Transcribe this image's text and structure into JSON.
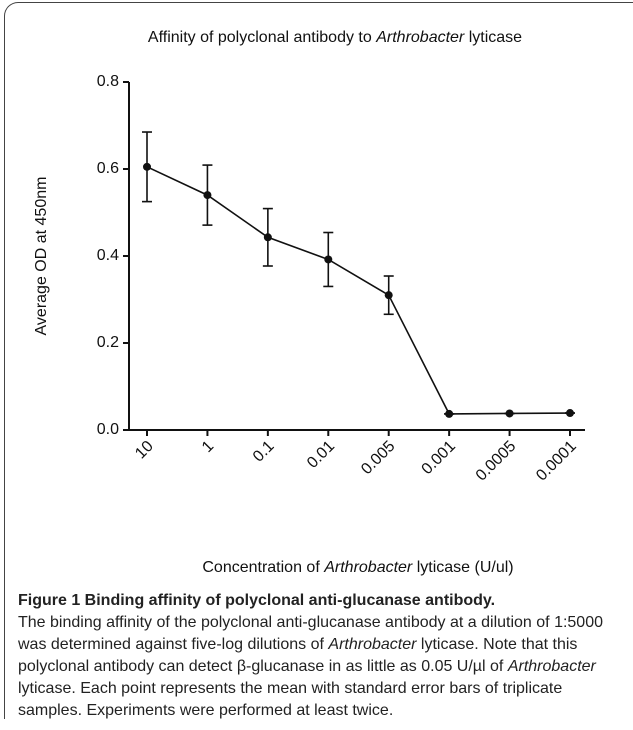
{
  "chart_data": {
    "type": "line",
    "title": [
      {
        "text": "Affinity of polyclonal antibody to"
      },
      {
        "text": "Arthrobacter",
        "italic": true
      },
      {
        "text": "lyticase"
      }
    ],
    "x_label": [
      {
        "text": "Concentration of"
      },
      {
        "text": "Arthrobacter",
        "italic": true
      },
      {
        "text": "lyticase (U/ul)"
      }
    ],
    "y_label": "Average OD at 450nm",
    "categories": [
      "10",
      "1",
      "0.1",
      "0.01",
      "0.005",
      "0.001",
      "0.0005",
      "0.0001"
    ],
    "values": [
      0.605,
      0.54,
      0.443,
      0.392,
      0.31,
      0.037,
      0.038,
      0.039
    ],
    "errors": [
      0.08,
      0.069,
      0.066,
      0.062,
      0.044,
      0,
      0,
      0
    ],
    "color": "#111111",
    "ylim": [
      0,
      0.8
    ],
    "yticks": [
      {
        "value": 0,
        "label": "0.0"
      },
      0.2,
      0.4,
      0.6,
      0.8
    ]
  },
  "caption": {
    "heading": "Figure 1 Binding affinity of polyclonal anti-glucanase antibody.",
    "body": [
      {
        "text": "The binding affinity of the polyclonal anti-glucanase antibody at a dilution of 1:5000 was determined against five-log dilutions of"
      },
      {
        "text": "Arthrobacter",
        "italic": true
      },
      {
        "text": "lyticase. Note that this polyclonal antibody can detect β-glucanase in as little as 0.05 U/µl of"
      },
      {
        "text": "Arthrobacter",
        "italic": true
      },
      {
        "text": "lyticase. Each point represents the mean with standard error bars of triplicate samples. Experiments were performed at least twice."
      }
    ]
  }
}
